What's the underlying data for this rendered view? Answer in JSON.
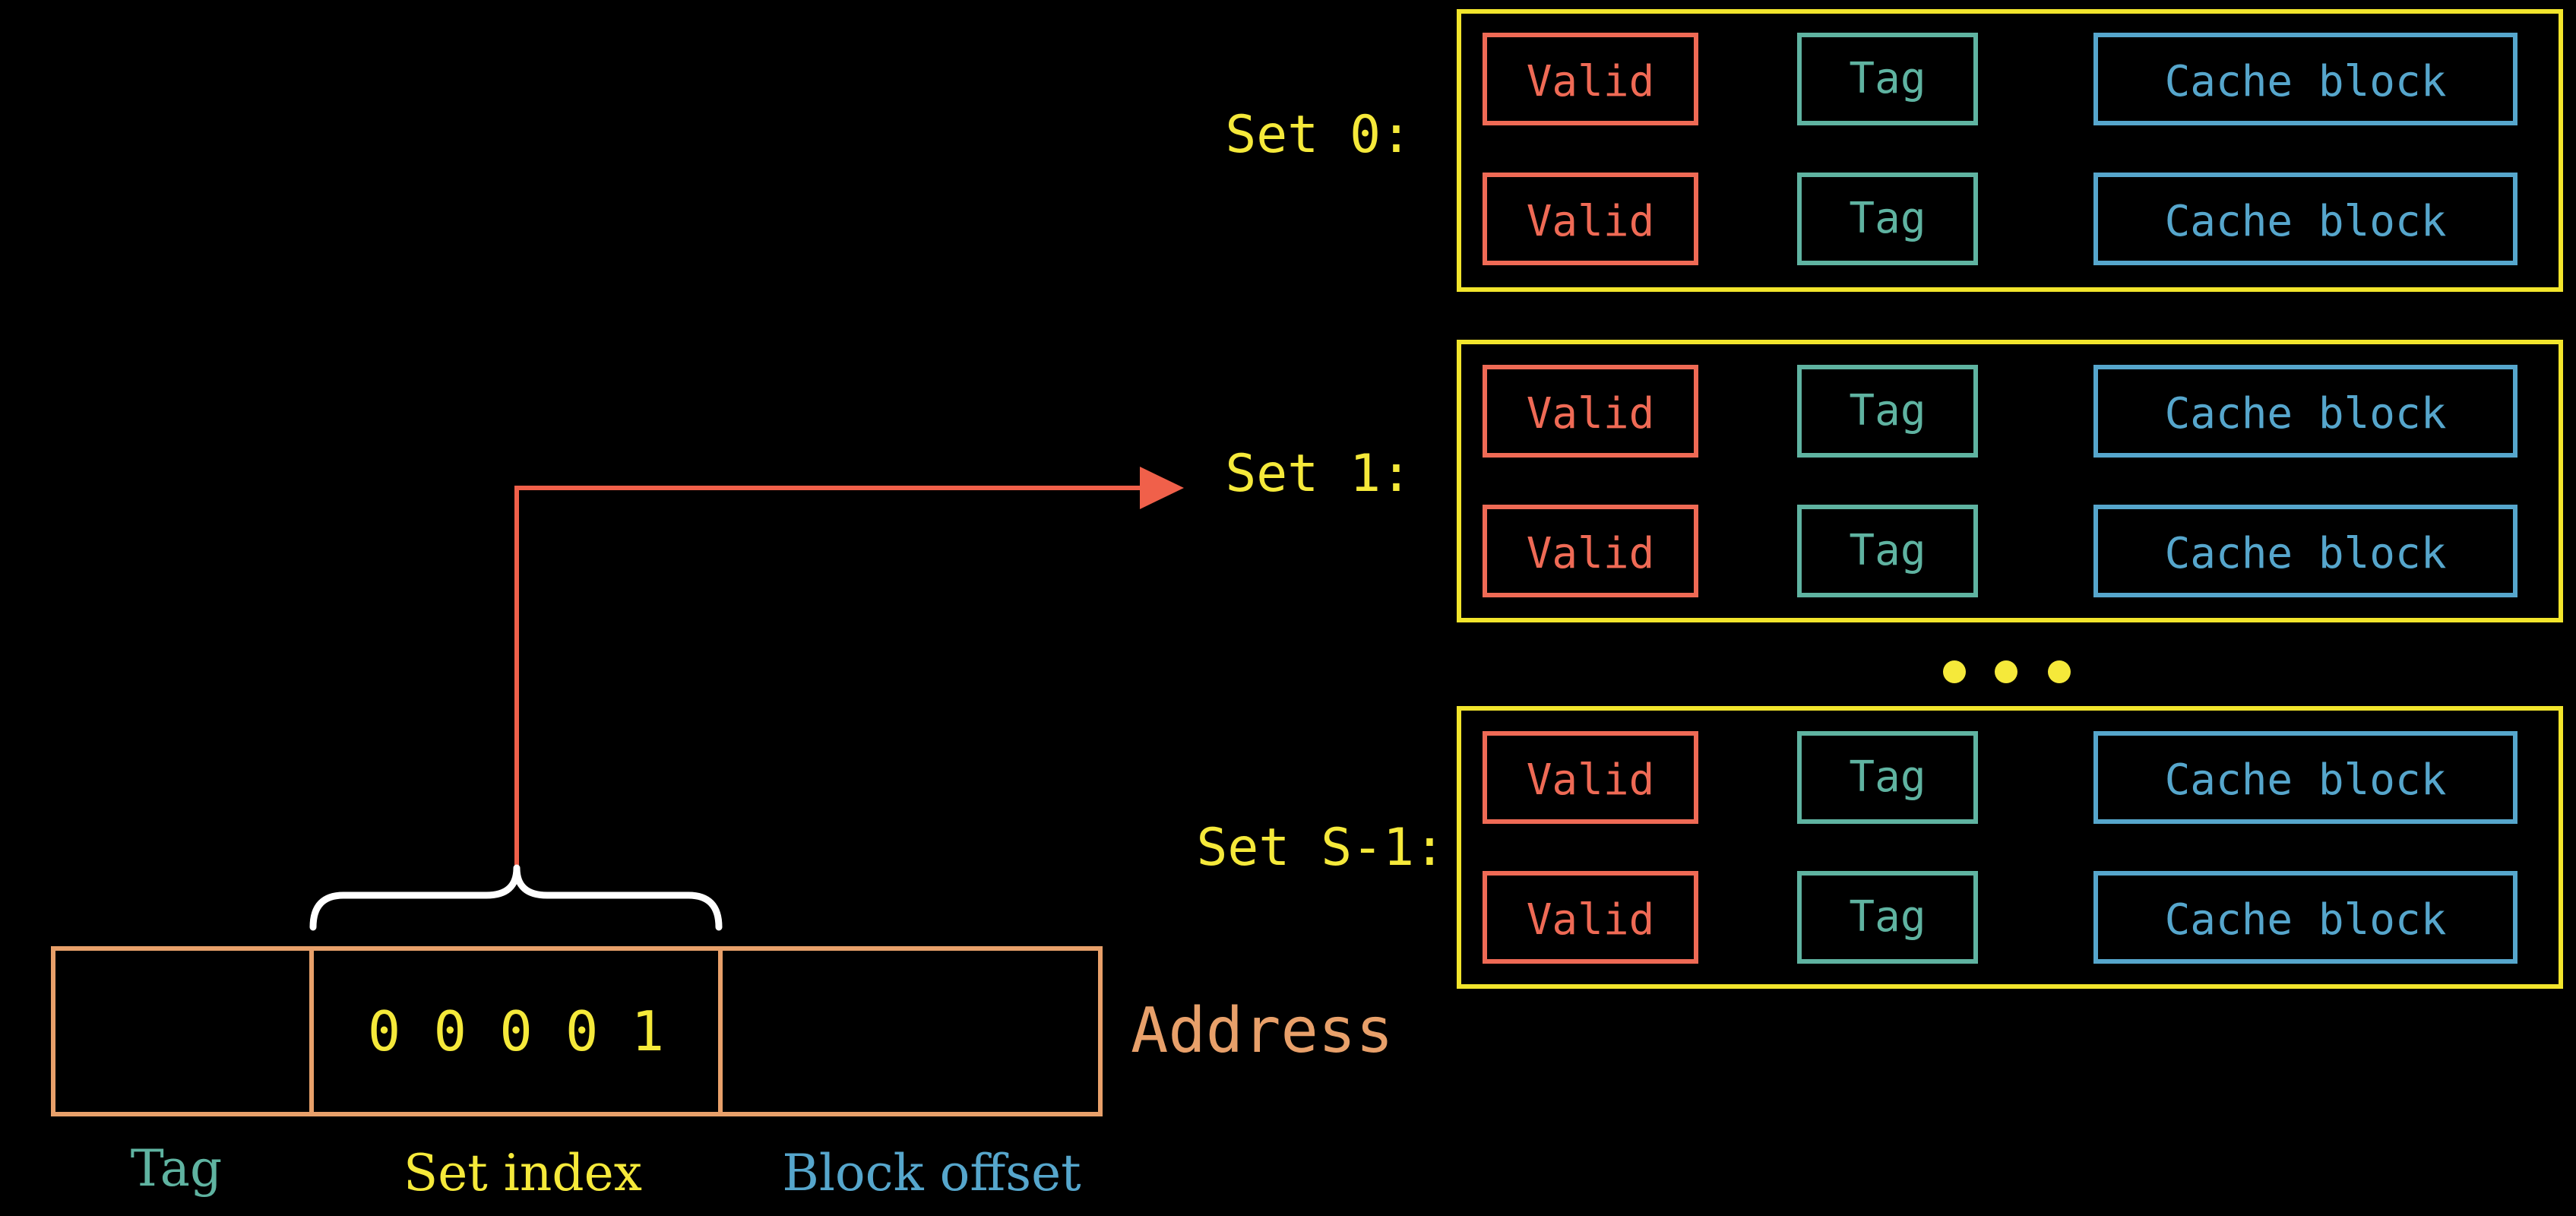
{
  "colors": {
    "background": "#000000",
    "set_border": "#f2e52c",
    "set_label": "#f5e93a",
    "valid": "#ef6a55",
    "tag": "#5fb3a1",
    "cache_block": "#56a6cc",
    "address": "#e8a06a",
    "bits": "#f5e93a",
    "arrow": "#f0604a",
    "brace": "#ffffff",
    "tag_label": "#5fb3a1",
    "set_index_label": "#f5e93a",
    "block_offset_label": "#56a6cc"
  },
  "sets": [
    {
      "label": "Set 0:",
      "lines": [
        {
          "valid": "Valid",
          "tag": "Tag",
          "block": "Cache block"
        },
        {
          "valid": "Valid",
          "tag": "Tag",
          "block": "Cache block"
        }
      ]
    },
    {
      "label": "Set 1:",
      "lines": [
        {
          "valid": "Valid",
          "tag": "Tag",
          "block": "Cache block"
        },
        {
          "valid": "Valid",
          "tag": "Tag",
          "block": "Cache block"
        }
      ]
    },
    {
      "label": "Set S-1:",
      "lines": [
        {
          "valid": "Valid",
          "tag": "Tag",
          "block": "Cache block"
        },
        {
          "valid": "Valid",
          "tag": "Tag",
          "block": "Cache block"
        }
      ]
    }
  ],
  "address": {
    "label": "Address",
    "set_index_bits": "0 0 0 0 1",
    "field_labels": {
      "tag": "Tag",
      "set_index": "Set index",
      "block_offset": "Block offset"
    }
  }
}
